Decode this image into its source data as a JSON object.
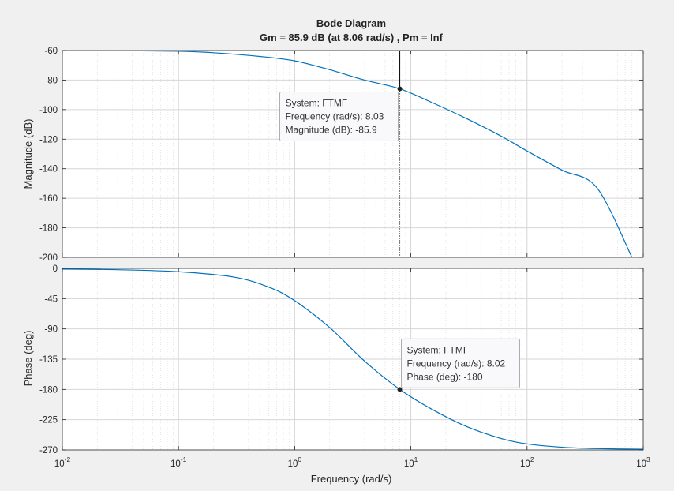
{
  "chart_data": {
    "type": "line",
    "title": "Bode Diagram",
    "subtitle": "Gm = 85.9 dB (at 8.06 rad/s) ,  Pm = Inf",
    "xlabel": "Frequency  (rad/s)",
    "xscale": "log",
    "xlim": [
      0.01,
      1000
    ],
    "x_ticks": [
      {
        "base": "10",
        "exp": "-2"
      },
      {
        "base": "10",
        "exp": "-1"
      },
      {
        "base": "10",
        "exp": "0"
      },
      {
        "base": "10",
        "exp": "1"
      },
      {
        "base": "10",
        "exp": "2"
      },
      {
        "base": "10",
        "exp": "3"
      }
    ],
    "grid": true,
    "line_color": "#0072bd",
    "panels": [
      {
        "id": "magnitude",
        "ylabel": "Magnitude (dB)",
        "ylim": [
          -200,
          -60
        ],
        "yticks": [
          -60,
          -80,
          -100,
          -120,
          -140,
          -160,
          -180,
          -200
        ],
        "series": [
          {
            "x": [
              0.01,
              0.03,
              0.1,
              0.2,
              0.5,
              1,
              2,
              4,
              8.03,
              15,
              30,
              60,
              100,
              200,
              400,
              800
            ],
            "y": [
              -60,
              -60.1,
              -60.5,
              -61.5,
              -64,
              -67,
              -73,
              -80,
              -85.9,
              -95,
              -106,
              -118,
              -128,
              -141,
              -153,
              -200
            ]
          }
        ],
        "datatip": {
          "point": {
            "x": 8.03,
            "y": -85.9
          },
          "lines": [
            "System: FTMF",
            "Frequency (rad/s): 8.03",
            "Magnitude (dB): -85.9"
          ]
        }
      },
      {
        "id": "phase",
        "ylabel": "Phase (deg)",
        "ylim": [
          -270,
          0
        ],
        "yticks": [
          0,
          -45,
          -90,
          -135,
          -180,
          -225,
          -270
        ],
        "series": [
          {
            "x": [
              0.01,
              0.03,
              0.1,
              0.3,
              0.6,
              1,
              2,
              4,
              8.02,
              15,
              30,
              60,
              100,
              200,
              400,
              1000
            ],
            "y": [
              -1,
              -2,
              -5,
              -13,
              -28,
              -48,
              -88,
              -138,
              -180,
              -209,
              -235,
              -253,
              -261,
              -266,
              -268,
              -269
            ]
          }
        ],
        "datatip": {
          "point": {
            "x": 8.02,
            "y": -180
          },
          "lines": [
            "System: FTMF",
            "Frequency (rad/s): 8.02",
            "Phase (deg): -180"
          ]
        }
      }
    ]
  }
}
